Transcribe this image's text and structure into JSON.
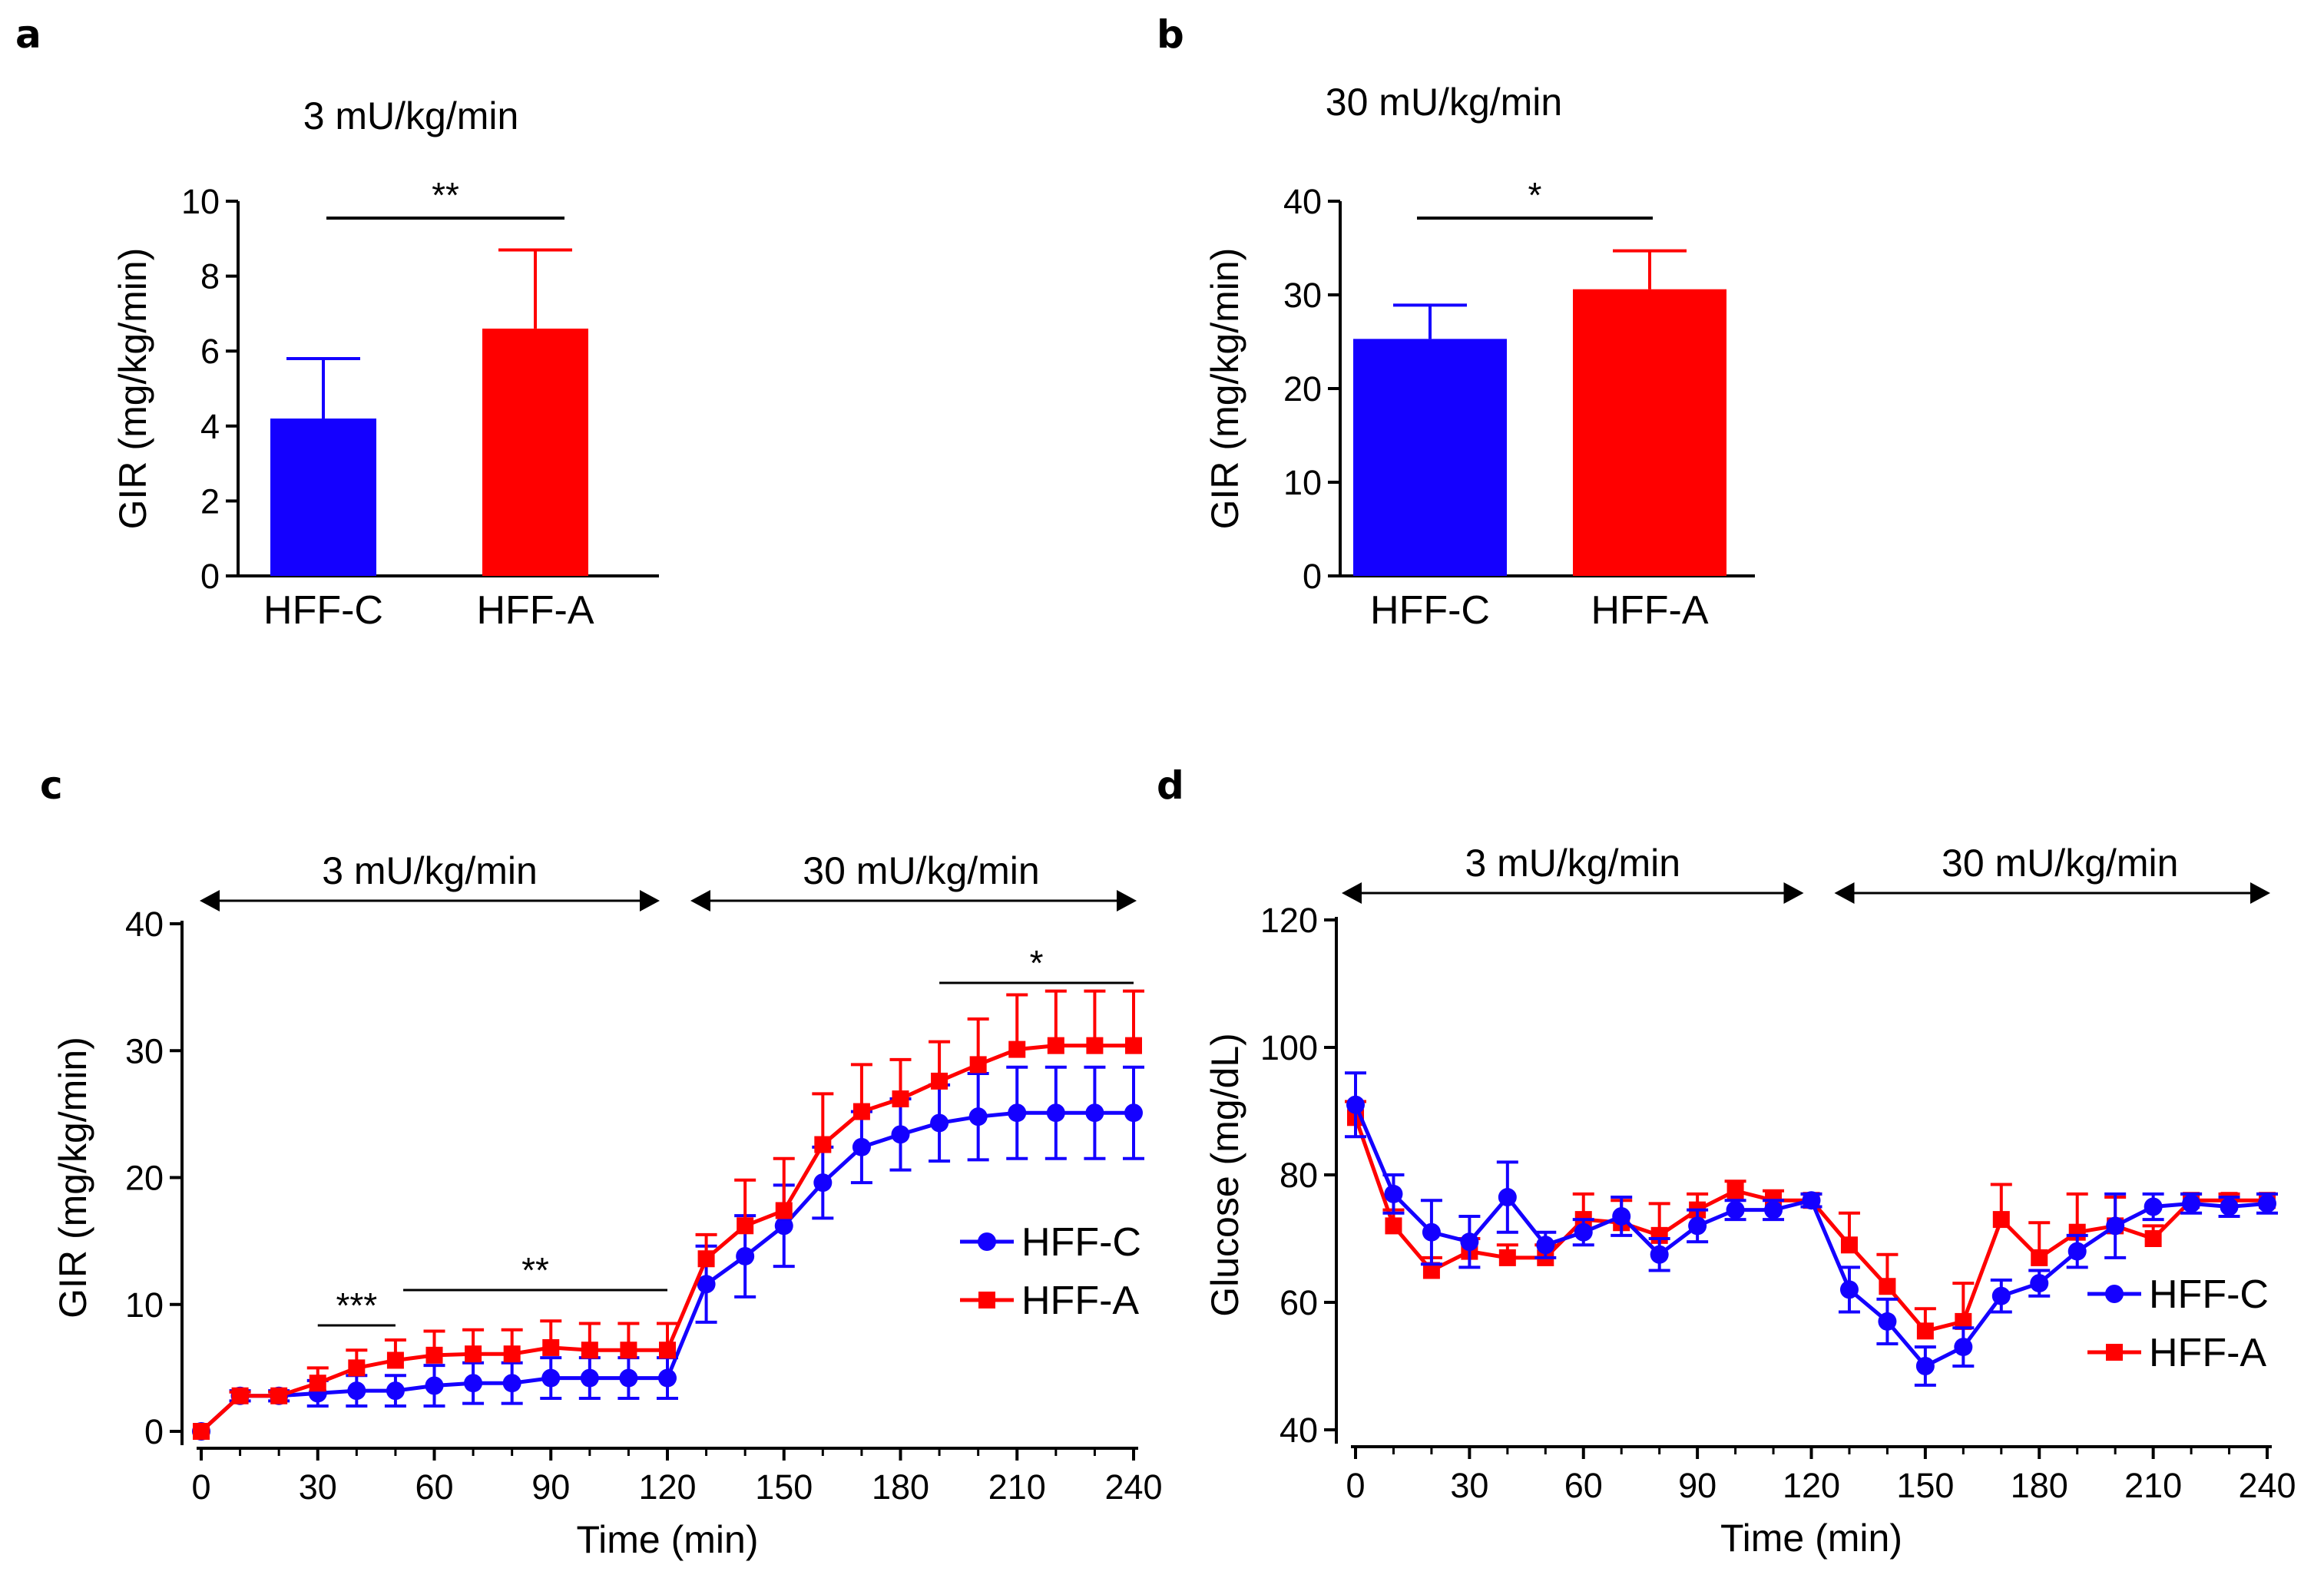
{
  "colors": {
    "hff_c": "#1400ff",
    "hff_a": "#ff0000",
    "axis": "#000000"
  },
  "chart_data": [
    {
      "panel": "a",
      "type": "bar",
      "title": "3 mU/kg/min",
      "ylabel": "GIR (mg/kg/min)",
      "xlabel": "",
      "categories": [
        "HFF-C",
        "HFF-A"
      ],
      "values": [
        4.2,
        6.6
      ],
      "errors": [
        1.6,
        2.1
      ],
      "ylim": [
        0,
        10
      ],
      "yticks": [
        "0",
        "2",
        "4",
        "6",
        "8",
        "10"
      ],
      "significance": "**"
    },
    {
      "panel": "b",
      "type": "bar",
      "title": "30 mU/kg/min",
      "ylabel": "GIR (mg/kg/min)",
      "xlabel": "",
      "categories": [
        "HFF-C",
        "HFF-A"
      ],
      "values": [
        25.3,
        30.6
      ],
      "errors": [
        3.6,
        4.1
      ],
      "ylim": [
        0,
        40
      ],
      "yticks": [
        "0",
        "10",
        "20",
        "30",
        "40"
      ],
      "significance": "*"
    },
    {
      "panel": "c",
      "type": "line",
      "ylabel": "GIR (mg/kg/min)",
      "xlabel": "Time (min)",
      "xlim": [
        0,
        240
      ],
      "ylim": [
        0,
        40
      ],
      "xticks": [
        "0",
        "30",
        "60",
        "90",
        "120",
        "150",
        "180",
        "210",
        "240"
      ],
      "yticks": [
        "0",
        "10",
        "20",
        "30",
        "40"
      ],
      "phases": [
        "3 mU/kg/min",
        "30 mU/kg/min"
      ],
      "legend_position": "center-right",
      "x": [
        0,
        10,
        20,
        30,
        40,
        50,
        60,
        70,
        80,
        90,
        100,
        110,
        120,
        130,
        140,
        150,
        160,
        170,
        180,
        190,
        200,
        210,
        220,
        230,
        240
      ],
      "series": [
        {
          "name": "HFF-C",
          "values": [
            0,
            2.8,
            2.8,
            3.0,
            3.2,
            3.2,
            3.6,
            3.8,
            3.8,
            4.2,
            4.2,
            4.2,
            4.2,
            11.6,
            13.8,
            16.2,
            19.6,
            22.4,
            23.4,
            24.3,
            24.8,
            25.1,
            25.1,
            25.1,
            25.1
          ],
          "errors": [
            0,
            0.4,
            0.4,
            1.0,
            1.2,
            1.2,
            1.6,
            1.6,
            1.6,
            1.6,
            1.6,
            1.6,
            1.6,
            3.0,
            3.2,
            3.2,
            2.8,
            2.8,
            2.8,
            3.0,
            3.4,
            3.6,
            3.6,
            3.6,
            3.6
          ]
        },
        {
          "name": "HFF-A",
          "values": [
            0,
            2.8,
            2.8,
            3.8,
            5.0,
            5.6,
            6.0,
            6.1,
            6.1,
            6.6,
            6.4,
            6.4,
            6.4,
            13.6,
            16.2,
            17.4,
            22.6,
            25.2,
            26.2,
            27.6,
            28.9,
            30.1,
            30.4,
            30.4,
            30.4
          ],
          "errors": [
            0,
            0.3,
            0.3,
            1.2,
            1.4,
            1.6,
            1.9,
            1.9,
            1.9,
            2.1,
            2.1,
            2.1,
            2.1,
            1.9,
            3.6,
            4.1,
            4.0,
            3.7,
            3.1,
            3.1,
            3.6,
            4.3,
            4.3,
            4.3,
            4.3
          ]
        }
      ],
      "annotations": [
        {
          "label": "***",
          "x_from": 30,
          "x_to": 50
        },
        {
          "label": "**",
          "x_from": 52,
          "x_to": 120
        },
        {
          "label": "*",
          "x_from": 190,
          "x_to": 240
        }
      ]
    },
    {
      "panel": "d",
      "type": "line",
      "ylabel": "Glucose (mg/dL)",
      "xlabel": "Time (min)",
      "xlim": [
        0,
        240
      ],
      "ylim": [
        40,
        120
      ],
      "xticks": [
        "0",
        "30",
        "60",
        "90",
        "120",
        "150",
        "180",
        "210",
        "240"
      ],
      "yticks": [
        "40",
        "60",
        "80",
        "100",
        "120"
      ],
      "phases": [
        "3 mU/kg/min",
        "30 mU/kg/min"
      ],
      "legend_position": "bottom-right",
      "x": [
        0,
        10,
        20,
        30,
        40,
        50,
        60,
        70,
        80,
        90,
        100,
        110,
        120,
        130,
        140,
        150,
        160,
        170,
        180,
        190,
        200,
        210,
        220,
        230,
        240
      ],
      "series": [
        {
          "name": "HFF-C",
          "values": [
            91,
            77,
            71,
            69.5,
            76.5,
            69,
            71,
            73.5,
            67.5,
            72,
            74.5,
            74.5,
            76,
            62,
            57,
            50,
            53,
            61,
            63,
            68,
            72,
            75,
            75.5,
            75,
            75.5
          ],
          "errors": [
            5,
            3,
            5,
            4,
            5.5,
            2,
            2,
            3,
            2.5,
            2.5,
            1.5,
            1.5,
            1,
            3.5,
            3.5,
            3,
            3,
            2.5,
            2,
            2.5,
            5,
            2,
            1.5,
            1.5,
            1.5
          ]
        },
        {
          "name": "HFF-A",
          "values": [
            89,
            72,
            65,
            68,
            67,
            67,
            73,
            72.5,
            70.5,
            74.5,
            77.5,
            76,
            76,
            69,
            62.5,
            55.5,
            57,
            73,
            67,
            71,
            72,
            70,
            76,
            76,
            76
          ],
          "errors": [
            2.5,
            2.5,
            2,
            2,
            2,
            2,
            4,
            3.5,
            5,
            2.5,
            1.5,
            1.5,
            1,
            5,
            5,
            3.5,
            6,
            5.5,
            5.5,
            6,
            4.5,
            2,
            1,
            1,
            1
          ]
        }
      ]
    }
  ]
}
